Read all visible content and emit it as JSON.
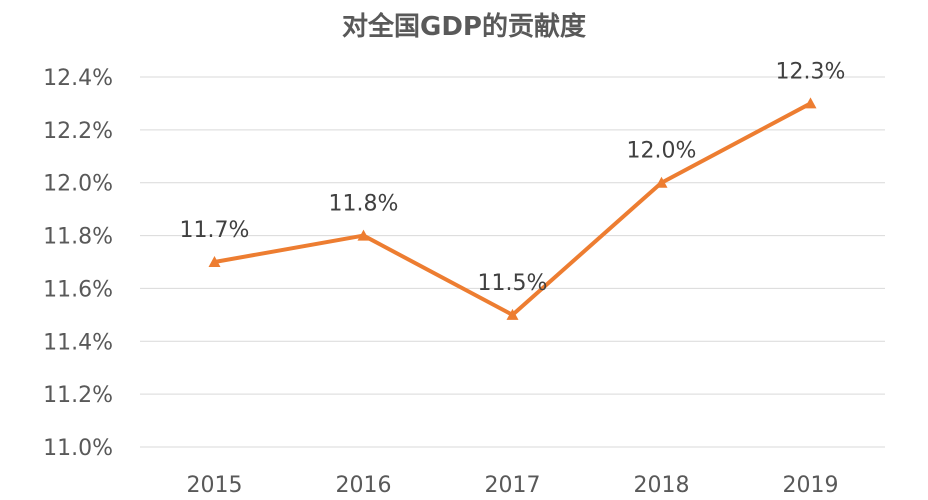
{
  "chart_data": {
    "type": "line",
    "title": "对全国GDP的贡献度",
    "xlabel": "",
    "ylabel": "",
    "categories": [
      "2015",
      "2016",
      "2017",
      "2018",
      "2019"
    ],
    "series": [
      {
        "values": [
          11.7,
          11.8,
          11.5,
          12.0,
          12.3
        ],
        "data_labels": [
          "11.7%",
          "11.8%",
          "11.5%",
          "12.0%",
          "12.3%"
        ],
        "color": "#ED7D31",
        "marker": "triangle"
      }
    ],
    "ylim": [
      11.0,
      12.4
    ],
    "yticks": [
      11.0,
      11.2,
      11.4,
      11.6,
      11.8,
      12.0,
      12.2,
      12.4
    ],
    "ytick_labels": [
      "11.0%",
      "11.2%",
      "11.4%",
      "11.6%",
      "11.8%",
      "12.0%",
      "12.2%",
      "12.4%"
    ],
    "grid": true,
    "legend": "none",
    "gridline_color": "#D9D9D9",
    "text_color": "#595959"
  }
}
